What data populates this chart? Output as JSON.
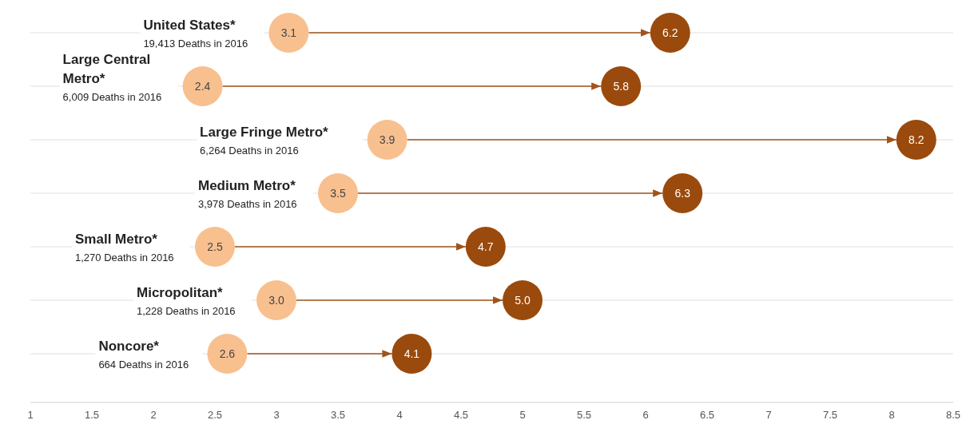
{
  "chart_data": {
    "type": "scatter",
    "orientation": "horizontal",
    "categories": [
      "United States*",
      "Large Central Metro*",
      "Large Fringe Metro*",
      "Medium Metro*",
      "Small Metro*",
      "Micropolitan*",
      "Noncore*"
    ],
    "series": [
      {
        "color": "#f8c08f",
        "values": [
          3.1,
          2.4,
          3.9,
          3.5,
          2.5,
          3.0,
          2.6
        ],
        "value_labels": [
          "3.1",
          "2.4",
          "3.9",
          "3.5",
          "2.5",
          "3.0",
          "2.6"
        ]
      },
      {
        "color": "#9a4a0c",
        "values": [
          6.2,
          5.8,
          8.2,
          6.3,
          4.7,
          5.0,
          4.1
        ],
        "value_labels": [
          "6.2",
          "5.8",
          "8.2",
          "6.3",
          "4.7",
          "5.0",
          "4.1"
        ]
      }
    ],
    "annotations": [
      "19,413 Deaths in 2016",
      "6,009 Deaths in 2016",
      "6,264 Deaths in 2016",
      "3,978 Deaths in 2016",
      "1,270 Deaths in 2016",
      "1,228 Deaths in 2016",
      "664 Deaths in 2016"
    ],
    "xlim": [
      1,
      8.5
    ],
    "xticks": [
      1,
      1.5,
      2,
      2.5,
      3,
      3.5,
      4,
      4.5,
      5,
      5.5,
      6,
      6.5,
      7,
      7.5,
      8,
      8.5
    ],
    "grid": "y",
    "marker": "circle"
  }
}
